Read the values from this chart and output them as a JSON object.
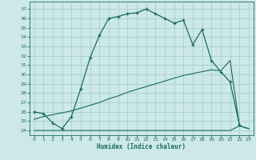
{
  "title": "",
  "xlabel": "Humidex (Indice chaleur)",
  "bg_color": "#cce8ea",
  "grid_color": "#a0c8cc",
  "line_color": "#1a6b5a",
  "xlim": [
    -0.5,
    23.5
  ],
  "ylim": [
    23.5,
    37.8
  ],
  "yticks": [
    24,
    25,
    26,
    27,
    28,
    29,
    30,
    31,
    32,
    33,
    34,
    35,
    36,
    37
  ],
  "xticks": [
    0,
    1,
    2,
    3,
    4,
    5,
    6,
    7,
    8,
    9,
    10,
    11,
    12,
    13,
    14,
    15,
    16,
    17,
    18,
    19,
    20,
    21,
    22,
    23
  ],
  "main_x": [
    0,
    1,
    2,
    3,
    4,
    5,
    6,
    7,
    8,
    9,
    10,
    11,
    12,
    13,
    14,
    15,
    16,
    17,
    18,
    19,
    20,
    21,
    22
  ],
  "main_y": [
    26.0,
    25.8,
    24.8,
    24.2,
    25.5,
    28.5,
    31.8,
    34.2,
    36.0,
    36.2,
    36.5,
    36.6,
    37.0,
    36.5,
    36.0,
    35.5,
    35.8,
    33.2,
    34.8,
    31.5,
    30.3,
    29.2,
    24.6
  ],
  "line2_x": [
    0,
    3,
    10,
    20,
    21,
    22,
    23
  ],
  "line2_y": [
    24.0,
    24.0,
    24.0,
    24.0,
    24.0,
    24.5,
    24.2
  ],
  "line3_x": [
    0,
    1,
    2,
    3,
    4,
    5,
    6,
    7,
    8,
    9,
    10,
    11,
    12,
    13,
    14,
    15,
    16,
    17,
    18,
    19,
    20,
    21,
    22,
    23
  ],
  "line3_y": [
    25.2,
    25.5,
    25.7,
    25.9,
    26.1,
    26.4,
    26.7,
    27.0,
    27.4,
    27.7,
    28.1,
    28.4,
    28.7,
    29.0,
    29.3,
    29.6,
    29.9,
    30.1,
    30.3,
    30.5,
    30.4,
    31.5,
    24.5,
    24.2
  ]
}
